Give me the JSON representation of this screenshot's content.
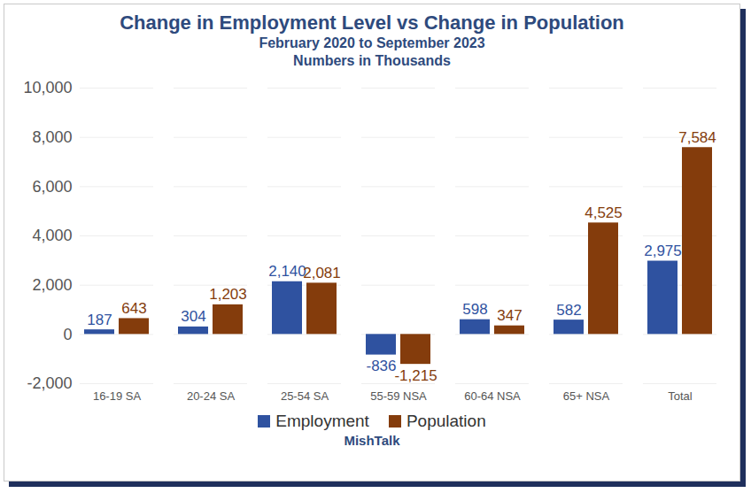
{
  "chart_data": {
    "type": "bar",
    "title": "Change in Employment Level vs Change in Population",
    "subtitle": [
      "February 2020 to September 2023",
      "Numbers in Thousands"
    ],
    "source": "MishTalk",
    "categories": [
      "16-19 SA",
      "20-24 SA",
      "25-54 SA",
      "55-59 NSA",
      "60-64 NSA",
      "65+ NSA",
      "Total"
    ],
    "series": [
      {
        "name": "Employment",
        "color": "#2f52a0",
        "values": [
          187,
          304,
          2140,
          -836,
          598,
          582,
          2975
        ],
        "value_labels": [
          "187",
          "304",
          "2,140",
          "-836",
          "598",
          "582",
          "2,975"
        ]
      },
      {
        "name": "Population",
        "color": "#843c0c",
        "values": [
          643,
          1203,
          2081,
          -1215,
          347,
          4525,
          7584
        ],
        "value_labels": [
          "643",
          "1,203",
          "2,081",
          "-1,215",
          "347",
          "4,525",
          "7,584"
        ]
      }
    ],
    "ylim": [
      -2000,
      10000
    ],
    "yticks": [
      {
        "value": -2000,
        "label": "-2,000"
      },
      0,
      {
        "value": 2000,
        "label": "2,000"
      },
      {
        "value": 4000,
        "label": "4,000"
      },
      {
        "value": 6000,
        "label": "6,000"
      },
      {
        "value": 8000,
        "label": "8,000"
      },
      {
        "value": 10000,
        "label": "10,000"
      }
    ],
    "grid": true,
    "legend": "bottom",
    "data_labels": true
  }
}
